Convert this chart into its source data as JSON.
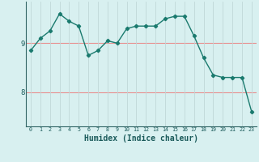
{
  "x": [
    0,
    1,
    2,
    3,
    4,
    5,
    6,
    7,
    8,
    9,
    10,
    11,
    12,
    13,
    14,
    15,
    16,
    17,
    18,
    19,
    20,
    21,
    22,
    23
  ],
  "y": [
    8.85,
    9.1,
    9.25,
    9.6,
    9.45,
    9.35,
    8.75,
    8.85,
    9.05,
    9.0,
    9.3,
    9.35,
    9.35,
    9.35,
    9.5,
    9.55,
    9.55,
    9.15,
    8.7,
    8.35,
    8.3,
    8.3,
    8.3,
    7.6
  ],
  "line_color": "#1a7a6e",
  "marker": "D",
  "marker_size": 2.2,
  "bg_color": "#d8f0f0",
  "grid_color": "#c0d8d8",
  "xlabel": "Humidex (Indice chaleur)",
  "xlabel_fontsize": 7,
  "ytick_labels": [
    "8",
    "9"
  ],
  "ytick_values": [
    8.0,
    9.0
  ],
  "xtick_labels": [
    "0",
    "1",
    "2",
    "3",
    "4",
    "5",
    "6",
    "7",
    "8",
    "9",
    "10",
    "11",
    "12",
    "13",
    "14",
    "15",
    "16",
    "17",
    "18",
    "19",
    "20",
    "21",
    "22",
    "23"
  ],
  "ylim": [
    7.3,
    9.85
  ],
  "xlim": [
    -0.5,
    23.5
  ],
  "hline_color": "#e89090",
  "hline_values": [
    8.0,
    9.0
  ],
  "vline_color": "#c0d8d8"
}
